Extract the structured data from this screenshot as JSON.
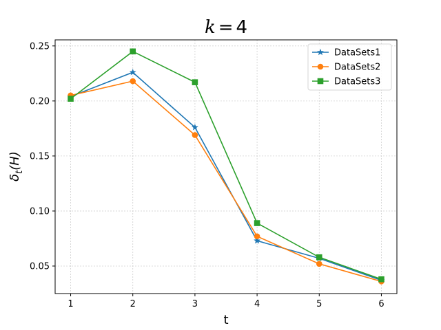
{
  "chart_data": {
    "type": "line",
    "title": "k = 4",
    "xlabel": "t",
    "ylabel": "δt(H)",
    "x": [
      1,
      2,
      3,
      4,
      5,
      6
    ],
    "xticks": [
      "1",
      "2",
      "3",
      "4",
      "5",
      "6"
    ],
    "yticks": [
      "0.05",
      "0.10",
      "0.15",
      "0.20",
      "0.25"
    ],
    "xlim": [
      0.75,
      6.25
    ],
    "ylim": [
      0.025,
      0.2555
    ],
    "grid": true,
    "legend_position": "top-right",
    "series": [
      {
        "name": "DataSets1",
        "color": "#1f77b4",
        "marker": "star",
        "values": [
          0.204,
          0.226,
          0.176,
          0.073,
          0.057,
          0.037
        ]
      },
      {
        "name": "DataSets2",
        "color": "#ff7f0e",
        "marker": "circle",
        "values": [
          0.205,
          0.218,
          0.169,
          0.077,
          0.052,
          0.036
        ]
      },
      {
        "name": "DataSets3",
        "color": "#2ca02c",
        "marker": "square",
        "values": [
          0.202,
          0.245,
          0.217,
          0.089,
          0.058,
          0.038
        ]
      }
    ]
  }
}
